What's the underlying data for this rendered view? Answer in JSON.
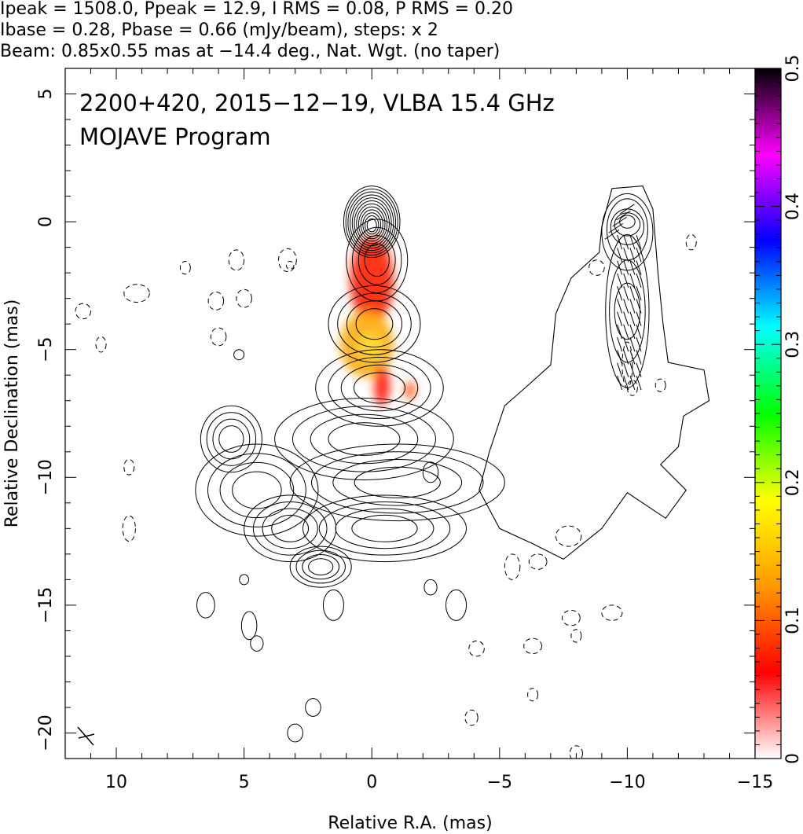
{
  "header": {
    "line1": "Ipeak = 1508.0, Ppeak = 12.9, I RMS = 0.08, P RMS = 0.20",
    "line2": "Ibase = 0.28, Pbase = 0.66 (mJy/beam), steps: x 2",
    "line3": "Beam: 0.85x0.55 mas at −14.4 deg., Nat. Wgt. (no taper)"
  },
  "chart_data": {
    "type": "heatmap",
    "title": "2200+420, 2015−12−19, VLBA 15.4 GHz",
    "subtitle": "MOJAVE Program",
    "xlabel": "Relative R.A. (mas)",
    "ylabel": "Relative Declination (mas)",
    "xlim": [
      12.0,
      -15.0
    ],
    "ylim": [
      -21.0,
      6.0
    ],
    "x_ticks": [
      10,
      5,
      0,
      -5,
      -10,
      -15
    ],
    "x_tick_labels": [
      "10",
      "5",
      "0",
      "−5",
      "−10",
      "−15"
    ],
    "y_ticks": [
      5,
      0,
      -5,
      -10,
      -15,
      -20
    ],
    "y_tick_labels": [
      "5",
      "0",
      "−5",
      "−10",
      "−15",
      "−20"
    ],
    "colorbar": {
      "range": [
        0,
        0.5
      ],
      "ticks": [
        0,
        0.1,
        0.2,
        0.3,
        0.4,
        0.5
      ],
      "tick_labels": [
        "0",
        "0.1",
        "0.2",
        "0.3",
        "0.4",
        "0.5"
      ],
      "colors": [
        "#ffffff",
        "#ff0000",
        "#ff9900",
        "#ffff00",
        "#00ff00",
        "#00ffff",
        "#0000ff",
        "#ff00ff",
        "#000000"
      ]
    },
    "left_panel": {
      "core": [
        0.0,
        0.0
      ],
      "contour_levels": 12,
      "blobs": [
        [
          -0.2,
          -1.5,
          1.2,
          1.6
        ],
        [
          -0.1,
          -4.0,
          1.8,
          1.5
        ],
        [
          -0.3,
          -6.5,
          2.5,
          1.5
        ],
        [
          0.3,
          -8.5,
          3.5,
          1.6
        ],
        [
          -1.0,
          -10.2,
          4.2,
          1.5
        ],
        [
          -0.5,
          -12.0,
          3.2,
          1.3
        ],
        [
          4.5,
          -10.5,
          2.4,
          1.8
        ],
        [
          3.2,
          -12.0,
          1.8,
          1.3
        ],
        [
          5.5,
          -8.5,
          1.2,
          1.3
        ],
        [
          2.0,
          -13.5,
          1.2,
          0.8
        ]
      ],
      "islands": [
        [
          6.5,
          -15.0,
          0.35,
          0.5
        ],
        [
          4.8,
          -15.8,
          0.3,
          0.55
        ],
        [
          1.5,
          -15.0,
          0.4,
          0.6
        ],
        [
          -2.3,
          -14.3,
          0.25,
          0.3
        ],
        [
          -3.3,
          -15.0,
          0.4,
          0.6
        ],
        [
          2.3,
          -19.0,
          0.3,
          0.35
        ],
        [
          3.0,
          -20.0,
          0.3,
          0.35
        ],
        [
          5.0,
          -14.0,
          0.18,
          0.2
        ],
        [
          5.2,
          -5.2,
          0.2,
          0.2
        ],
        [
          4.5,
          -16.5,
          0.25,
          0.3
        ],
        [
          -2.3,
          -9.8,
          0.3,
          0.4
        ]
      ],
      "negative_islands": [
        [
          3.3,
          -1.5,
          0.35,
          0.45
        ],
        [
          5.3,
          -1.5,
          0.3,
          0.4
        ],
        [
          5.0,
          -3.0,
          0.3,
          0.35
        ],
        [
          6.1,
          -3.1,
          0.3,
          0.35
        ],
        [
          6.0,
          -4.5,
          0.3,
          0.35
        ],
        [
          9.2,
          -2.8,
          0.5,
          0.35
        ],
        [
          7.3,
          -1.8,
          0.2,
          0.25
        ],
        [
          10.6,
          -4.8,
          0.2,
          0.3
        ],
        [
          9.5,
          -9.6,
          0.2,
          0.3
        ],
        [
          9.5,
          -12.0,
          0.25,
          0.5
        ],
        [
          11.3,
          -3.5,
          0.3,
          0.3
        ],
        [
          3.2,
          -1.7,
          0.15,
          0.15
        ]
      ],
      "polarization_patches": [
        [
          0.0,
          -2.3,
          0.85,
          1.7
        ],
        [
          0.2,
          -4.8,
          1.05,
          1.3
        ],
        [
          -0.4,
          -6.4,
          0.3,
          0.8
        ],
        [
          -1.5,
          -6.6,
          0.2,
          0.35
        ]
      ]
    },
    "right_panel": {
      "core": [
        -10.0,
        0.0
      ],
      "outline": [
        [
          -9.4,
          1.3
        ],
        [
          -10.6,
          1.4
        ],
        [
          -11.0,
          0.5
        ],
        [
          -11.2,
          -2.0
        ],
        [
          -11.4,
          -4.0
        ],
        [
          -11.6,
          -5.5
        ],
        [
          -13.0,
          -5.8
        ],
        [
          -13.2,
          -7.0
        ],
        [
          -12.2,
          -7.6
        ],
        [
          -12.0,
          -8.8
        ],
        [
          -11.3,
          -9.5
        ],
        [
          -12.3,
          -10.5
        ],
        [
          -11.5,
          -11.6
        ],
        [
          -10.0,
          -10.6
        ],
        [
          -9.0,
          -12.0
        ],
        [
          -7.5,
          -13.2
        ],
        [
          -6.3,
          -12.6
        ],
        [
          -5.0,
          -12.0
        ],
        [
          -4.2,
          -10.5
        ],
        [
          -4.6,
          -9.0
        ],
        [
          -5.2,
          -7.2
        ],
        [
          -6.0,
          -6.5
        ],
        [
          -7.0,
          -5.6
        ],
        [
          -7.2,
          -3.6
        ],
        [
          -7.8,
          -2.2
        ],
        [
          -8.9,
          -1.2
        ],
        [
          -9.0,
          -0.2
        ]
      ]
    }
  }
}
